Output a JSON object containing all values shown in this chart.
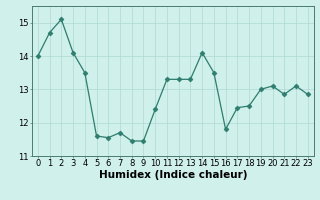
{
  "x": [
    0,
    1,
    2,
    3,
    4,
    5,
    6,
    7,
    8,
    9,
    10,
    11,
    12,
    13,
    14,
    15,
    16,
    17,
    18,
    19,
    20,
    21,
    22,
    23
  ],
  "y": [
    14.0,
    14.7,
    15.1,
    14.1,
    13.5,
    11.6,
    11.55,
    11.7,
    11.45,
    11.45,
    12.4,
    13.3,
    13.3,
    13.3,
    14.1,
    13.5,
    11.8,
    12.45,
    12.5,
    13.0,
    13.1,
    12.85,
    13.1,
    12.85
  ],
  "xlabel": "Humidex (Indice chaleur)",
  "line_color": "#2e7d6e",
  "marker": "D",
  "marker_size": 2.5,
  "bg_color": "#cff0eb",
  "grid_color": "#aed8d2",
  "ylim": [
    11.0,
    15.5
  ],
  "xlim": [
    -0.5,
    23.5
  ],
  "yticks": [
    11,
    12,
    13,
    14,
    15
  ],
  "xticks": [
    0,
    1,
    2,
    3,
    4,
    5,
    6,
    7,
    8,
    9,
    10,
    11,
    12,
    13,
    14,
    15,
    16,
    17,
    18,
    19,
    20,
    21,
    22,
    23
  ],
  "tick_fontsize": 6.0,
  "label_fontsize": 7.5,
  "linewidth": 0.9
}
